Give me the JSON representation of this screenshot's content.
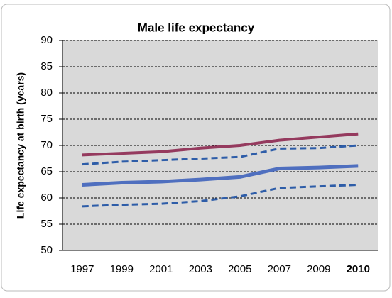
{
  "chart_data": {
    "type": "line",
    "title": "Male life expectancy",
    "y_label": "Life expectancy at birth (years)",
    "categories": [
      "1997",
      "1999",
      "2001",
      "2003",
      "2005",
      "2007",
      "2009",
      "2010"
    ],
    "series": [
      {
        "color": "#953a5e",
        "line_style": "solid",
        "values": [
          68.2,
          68.5,
          68.8,
          69.5,
          70.0,
          71.0,
          71.6,
          72.2
        ]
      },
      {
        "color": "#2e5da8",
        "line_style": "dashed",
        "values": [
          66.4,
          66.9,
          67.2,
          67.5,
          67.8,
          69.4,
          69.5,
          70.0
        ]
      },
      {
        "color": "#4f6fbf",
        "line_style": "solid",
        "values": [
          62.5,
          62.9,
          63.1,
          63.5,
          64.0,
          65.6,
          65.8,
          66.1
        ]
      },
      {
        "color": "#2e5da8",
        "line_style": "dashed",
        "values": [
          58.4,
          58.7,
          58.9,
          59.4,
          60.3,
          61.9,
          62.2,
          62.5
        ]
      }
    ],
    "ylim": [
      50,
      90
    ],
    "yticks": [
      50,
      55,
      60,
      65,
      70,
      75,
      80,
      85,
      90
    ],
    "grid": true,
    "legend": false
  }
}
